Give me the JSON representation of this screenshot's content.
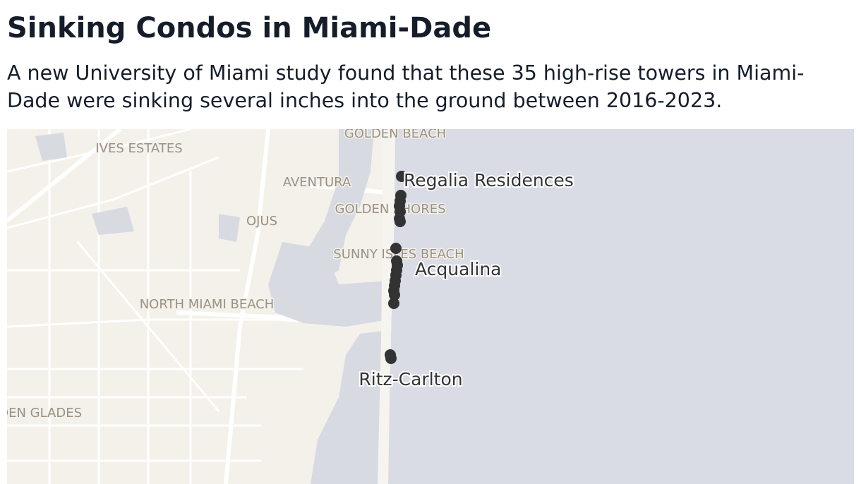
{
  "header": {
    "title": "Sinking Condos in Miami-Dade",
    "subtitle": "A new University of Miami study found that these 35 high-rise towers in Miami-Dade were sinking several inches into the ground between 2016-2023."
  },
  "map": {
    "place_labels": [
      "GOLDEN BEACH",
      "IVES ESTATES",
      "AVENTURA",
      "GOLDEN SHORES",
      "OJUS",
      "SUNNY ISLES BEACH",
      "NORTH MIAMI BEACH",
      "GOLDEN GLADES"
    ],
    "annotations": [
      "Regalia Residences",
      "Acqualina",
      "Ritz-Carlton"
    ]
  }
}
